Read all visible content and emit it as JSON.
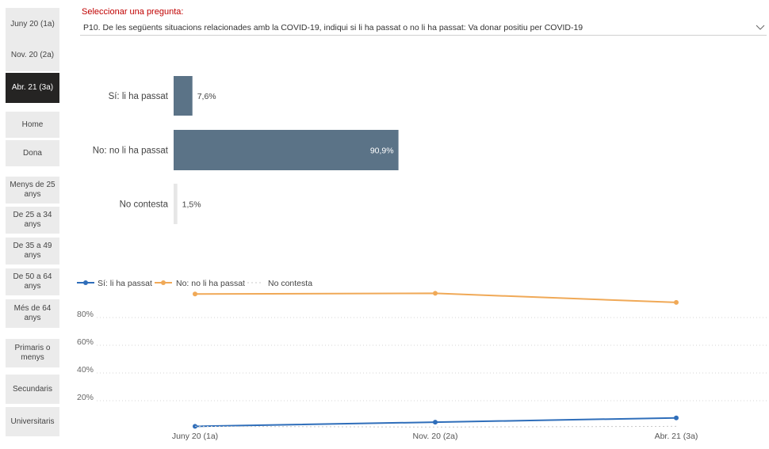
{
  "sidebar": {
    "items": [
      {
        "label": "Juny 20 (1a)",
        "active": false
      },
      {
        "label": "Nov. 20 (2a)",
        "active": false
      },
      {
        "label": "Abr. 21 (3a)",
        "active": true
      },
      {
        "label": "Home",
        "active": false
      },
      {
        "label": "Dona",
        "active": false
      },
      {
        "label": "Menys de 25 anys",
        "active": false
      },
      {
        "label": "De 25 a 34 anys",
        "active": false
      },
      {
        "label": "De 35 a 49 anys",
        "active": false
      },
      {
        "label": "De 50 a 64 anys",
        "active": false
      },
      {
        "label": "Més de 64 anys",
        "active": false
      },
      {
        "label": "Primaris o menys",
        "active": false
      },
      {
        "label": "Secundaris",
        "active": false
      },
      {
        "label": "Universitaris",
        "active": false
      }
    ]
  },
  "question": {
    "label": "Seleccionar una pregunta:",
    "selected": "P10. De les següents situacions relacionades amb la COVID-19, indiqui si li ha passat o no li ha passat: Va donar positiu per COVID-19"
  },
  "colors": {
    "bar": "#5b7387",
    "bar_light": "#e6e6e6",
    "series_si": "#2f6eba",
    "series_no": "#f0a957",
    "series_nc": "#c8c8c8",
    "active_btn": "#252423",
    "accent_red": "#c00000"
  },
  "chart_data": [
    {
      "type": "bar",
      "orientation": "horizontal",
      "categories": [
        "Sí: li ha passat",
        "No: no li ha passat",
        "No contesta"
      ],
      "values": [
        7.6,
        90.9,
        1.5
      ],
      "value_labels": [
        "7,6%",
        "90,9%",
        "1,5%"
      ]
    },
    {
      "type": "line",
      "x": [
        "Juny 20 (1a)",
        "Nov. 20 (2a)",
        "Abr. 21 (3a)"
      ],
      "y_ticks": [
        "20%",
        "40%",
        "60%",
        "80%"
      ],
      "legend_position": "top-left",
      "grid": true,
      "series": [
        {
          "name": "Sí: li ha passat",
          "values": [
            1.5,
            4.5,
            7.6
          ]
        },
        {
          "name": "No: no li ha passat",
          "values": [
            97.0,
            97.5,
            90.9
          ]
        },
        {
          "name": "No contesta",
          "values": [
            1.5,
            1.0,
            1.5
          ]
        }
      ]
    }
  ]
}
